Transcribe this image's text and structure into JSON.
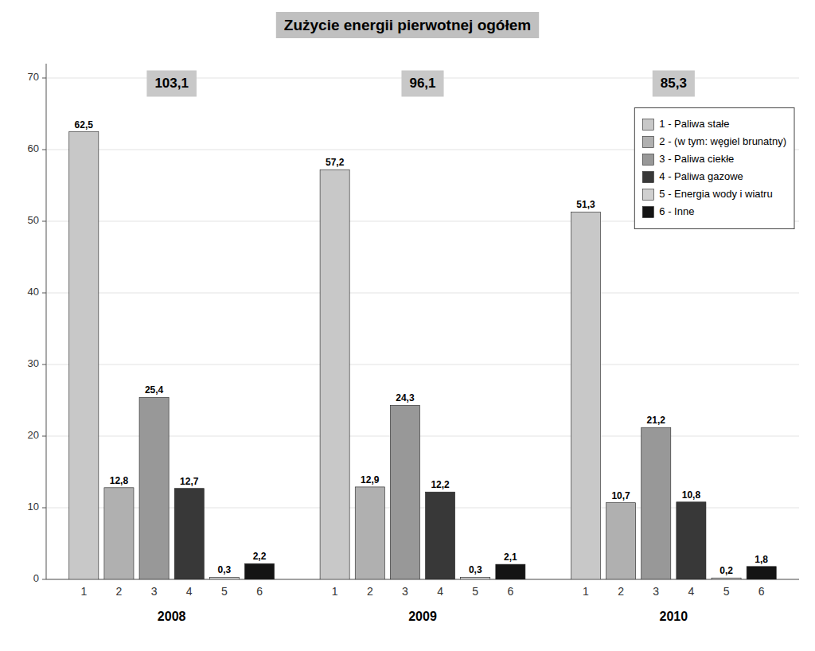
{
  "chart_data": {
    "type": "bar",
    "title": "Zużycie energii pierwotnej ogółem",
    "categories": [
      "2008",
      "2009",
      "2010"
    ],
    "series": [
      {
        "name": "1 - Paliwa stałe",
        "label": "1",
        "color": "#c8c8c8",
        "values": [
          62.5,
          57.2,
          51.3
        ],
        "value_labels": [
          "62,5",
          "57,2",
          "51,3"
        ]
      },
      {
        "name": "2 - (w tym: węgiel brunatny)",
        "label": "2",
        "color": "#b0b0b0",
        "values": [
          12.8,
          12.9,
          10.7
        ],
        "value_labels": [
          "12,8",
          "12,9",
          "10,7"
        ]
      },
      {
        "name": "3 - Paliwa ciekłe",
        "label": "3",
        "color": "#989898",
        "values": [
          25.4,
          24.3,
          21.2
        ],
        "value_labels": [
          "25,4",
          "24,3",
          "21,2"
        ]
      },
      {
        "name": "4 - Paliwa gazowe",
        "label": "4",
        "color": "#383838",
        "values": [
          12.7,
          12.2,
          10.8
        ],
        "value_labels": [
          "12,7",
          "12,2",
          "10,8"
        ]
      },
      {
        "name": "5 - Energia wody i wiatru",
        "label": "5",
        "color": "#d0d0d0",
        "values": [
          0.3,
          0.3,
          0.2
        ],
        "value_labels": [
          "0,3",
          "0,3",
          "0,2"
        ]
      },
      {
        "name": "6 - Inne",
        "label": "6",
        "color": "#141414",
        "values": [
          2.2,
          2.1,
          1.8
        ],
        "value_labels": [
          "2,2",
          "2,1",
          "1,8"
        ]
      }
    ],
    "totals": [
      "103,1",
      "96,1",
      "85,3"
    ],
    "ylim": [
      0,
      72
    ],
    "yticks": [
      0,
      10,
      20,
      30,
      40,
      50,
      60,
      70
    ],
    "grid": true,
    "legend": "upper right",
    "data_labels": true
  }
}
